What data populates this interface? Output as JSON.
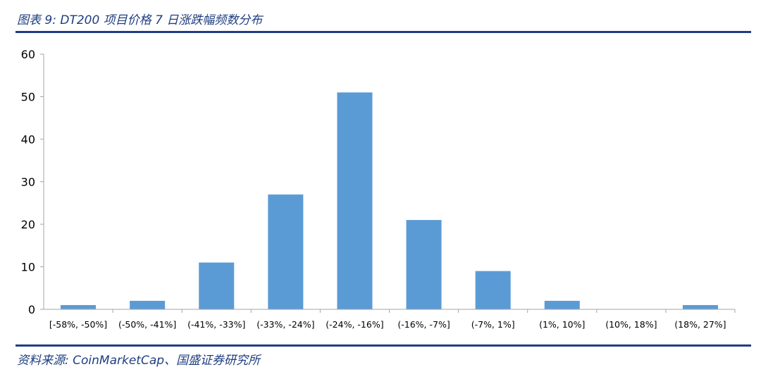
{
  "figure": {
    "title": "图表 9:  DT200 项目价格 7 日涨跌幅频数分布",
    "source": "资料来源: CoinMarketCap、国盛证券研究所"
  },
  "colors": {
    "bar": "#5b9bd5",
    "axis": "#a6a6a6",
    "brand": "#1f3e80"
  },
  "chart_data": {
    "type": "bar",
    "categories": [
      "[-58%, -50%]",
      "(-50%, -41%]",
      "(-41%, -33%]",
      "(-33%, -24%]",
      "(-24%, -16%]",
      "(-16%, -7%]",
      "(-7%, 1%]",
      "(1%, 10%]",
      "(10%, 18%]",
      "(18%, 27%]"
    ],
    "values": [
      1,
      2,
      11,
      27,
      51,
      21,
      9,
      2,
      0,
      1
    ],
    "yticks": [
      0,
      10,
      20,
      30,
      40,
      50,
      60
    ],
    "ylim": [
      0,
      60
    ],
    "grid": false,
    "legend": "none"
  }
}
